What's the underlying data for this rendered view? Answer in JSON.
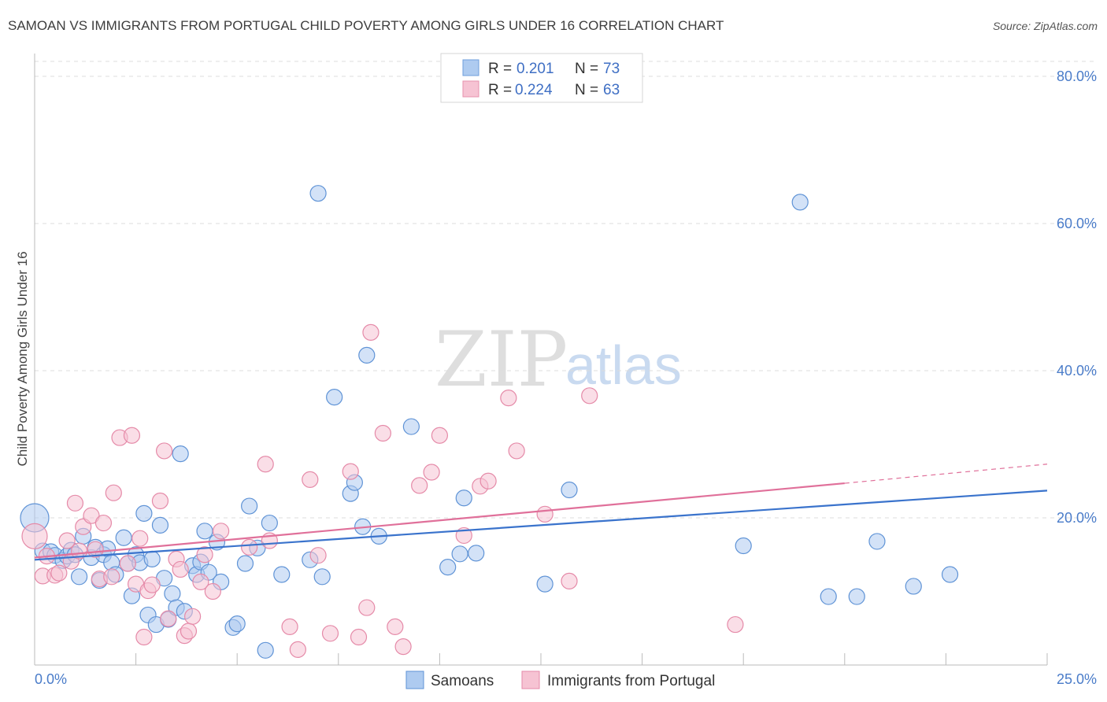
{
  "header": {
    "title": "SAMOAN VS IMMIGRANTS FROM PORTUGAL CHILD POVERTY AMONG GIRLS UNDER 16 CORRELATION CHART",
    "source": "Source: ZipAtlas.com"
  },
  "watermark": {
    "zip": "ZIP",
    "atlas": "atlas"
  },
  "legend": {
    "r_label": "R =",
    "n_label": "N =",
    "entries": [
      {
        "r": "0.201",
        "n": "73",
        "fill": "#aecbf0",
        "stroke": "#6f9fdc"
      },
      {
        "r": "0.224",
        "n": "63",
        "fill": "#f6c3d3",
        "stroke": "#e791ad"
      }
    ]
  },
  "bottom_legend": [
    "Samoans",
    "Immigrants from Portugal"
  ],
  "colors": {
    "blue_fill": "#aecbf0",
    "blue_stroke": "#5f93d6",
    "blue_line": "#3a73cc",
    "pink_fill": "#f6c3d3",
    "pink_stroke": "#e58aa8",
    "pink_line": "#e0709a",
    "tick_text": "#4a7cc9"
  },
  "chart_data": {
    "type": "scatter",
    "title": "SAMOAN VS IMMIGRANTS FROM PORTUGAL CHILD POVERTY AMONG GIRLS UNDER 16 CORRELATION CHART",
    "xlabel": "",
    "ylabel": "Child Poverty Among Girls Under 16",
    "xlim": [
      0,
      25
    ],
    "ylim": [
      0,
      80
    ],
    "x_tick_labels": [
      "0.0%",
      "25.0%"
    ],
    "y_ticks": [
      20,
      40,
      60,
      80
    ],
    "y_tick_labels": [
      "20.0%",
      "40.0%",
      "60.0%",
      "80.0%"
    ],
    "grid": true,
    "legend_position": "top-center",
    "series": [
      {
        "name": "Samoans",
        "r": 0.201,
        "n": 73,
        "trend": {
          "x": [
            0,
            25
          ],
          "y": [
            14.3,
            23.7
          ]
        },
        "points": [
          [
            0.0,
            20.0,
            18
          ],
          [
            0.2,
            15.5,
            10
          ],
          [
            0.4,
            15.4,
            10
          ],
          [
            0.5,
            14.9,
            10
          ],
          [
            0.7,
            14.2,
            10
          ],
          [
            0.8,
            14.8,
            10
          ],
          [
            0.9,
            15.6,
            10
          ],
          [
            1.0,
            15.0,
            10
          ],
          [
            1.1,
            12.0,
            10
          ],
          [
            1.2,
            17.5,
            10
          ],
          [
            1.4,
            14.6,
            10
          ],
          [
            1.5,
            16.0,
            10
          ],
          [
            1.6,
            11.5,
            10
          ],
          [
            1.7,
            15.0,
            10
          ],
          [
            1.8,
            15.8,
            10
          ],
          [
            1.9,
            13.9,
            10
          ],
          [
            2.0,
            12.3,
            10
          ],
          [
            2.2,
            17.3,
            10
          ],
          [
            2.3,
            13.8,
            10
          ],
          [
            2.4,
            9.4,
            10
          ],
          [
            2.5,
            15.0,
            10
          ],
          [
            2.6,
            13.9,
            10
          ],
          [
            2.7,
            20.6,
            10
          ],
          [
            2.8,
            6.8,
            10
          ],
          [
            2.9,
            14.4,
            10
          ],
          [
            3.0,
            5.5,
            10
          ],
          [
            3.1,
            19.0,
            10
          ],
          [
            3.2,
            11.8,
            10
          ],
          [
            3.3,
            6.2,
            10
          ],
          [
            3.4,
            9.7,
            10
          ],
          [
            3.5,
            7.8,
            10
          ],
          [
            3.6,
            28.7,
            10
          ],
          [
            3.7,
            7.3,
            10
          ],
          [
            3.9,
            13.5,
            10
          ],
          [
            4.0,
            12.3,
            10
          ],
          [
            4.1,
            14.0,
            10
          ],
          [
            4.2,
            18.2,
            10
          ],
          [
            4.3,
            12.6,
            10
          ],
          [
            4.5,
            16.7,
            10
          ],
          [
            4.6,
            11.3,
            10
          ],
          [
            4.9,
            5.1,
            10
          ],
          [
            5.0,
            5.6,
            10
          ],
          [
            5.2,
            13.8,
            10
          ],
          [
            5.3,
            21.6,
            10
          ],
          [
            5.5,
            15.9,
            10
          ],
          [
            5.7,
            2.0,
            10
          ],
          [
            5.8,
            19.3,
            10
          ],
          [
            6.1,
            12.3,
            10
          ],
          [
            6.8,
            14.3,
            10
          ],
          [
            7.0,
            64.1,
            10
          ],
          [
            7.1,
            12.0,
            10
          ],
          [
            7.4,
            36.4,
            10
          ],
          [
            7.8,
            23.3,
            10
          ],
          [
            7.9,
            24.8,
            10
          ],
          [
            8.1,
            18.8,
            10
          ],
          [
            8.2,
            42.1,
            10
          ],
          [
            8.5,
            17.5,
            10
          ],
          [
            9.3,
            32.4,
            10
          ],
          [
            10.2,
            13.3,
            10
          ],
          [
            10.5,
            15.1,
            10
          ],
          [
            10.6,
            22.7,
            10
          ],
          [
            10.9,
            15.2,
            10
          ],
          [
            12.6,
            11.0,
            10
          ],
          [
            13.2,
            23.8,
            10
          ],
          [
            17.5,
            16.2,
            10
          ],
          [
            18.9,
            62.9,
            10
          ],
          [
            19.6,
            9.3,
            10
          ],
          [
            20.3,
            9.3,
            10
          ],
          [
            20.8,
            16.8,
            10
          ],
          [
            21.7,
            10.7,
            10
          ],
          [
            22.6,
            12.3,
            10
          ]
        ]
      },
      {
        "name": "Immigrants from Portugal",
        "r": 0.224,
        "n": 63,
        "trend": {
          "x": [
            0,
            20
          ],
          "y": [
            14.6,
            24.7
          ]
        },
        "trend_dashed": {
          "x": [
            20,
            25
          ],
          "y": [
            24.7,
            27.3
          ]
        },
        "points": [
          [
            0.0,
            17.5,
            16
          ],
          [
            0.2,
            12.1,
            10
          ],
          [
            0.3,
            14.8,
            10
          ],
          [
            0.5,
            12.2,
            10
          ],
          [
            0.6,
            12.5,
            10
          ],
          [
            0.8,
            16.9,
            10
          ],
          [
            0.9,
            14.1,
            10
          ],
          [
            1.0,
            22.0,
            10
          ],
          [
            1.1,
            15.5,
            10
          ],
          [
            1.2,
            18.8,
            10
          ],
          [
            1.4,
            20.3,
            10
          ],
          [
            1.5,
            15.7,
            10
          ],
          [
            1.6,
            11.7,
            10
          ],
          [
            1.7,
            19.3,
            10
          ],
          [
            1.9,
            12.0,
            10
          ],
          [
            1.95,
            23.4,
            10
          ],
          [
            2.1,
            30.9,
            10
          ],
          [
            2.3,
            13.8,
            10
          ],
          [
            2.4,
            31.2,
            10
          ],
          [
            2.5,
            11.0,
            10
          ],
          [
            2.6,
            17.2,
            10
          ],
          [
            2.7,
            3.8,
            10
          ],
          [
            2.8,
            10.1,
            10
          ],
          [
            2.9,
            10.9,
            10
          ],
          [
            3.1,
            22.3,
            10
          ],
          [
            3.2,
            29.1,
            10
          ],
          [
            3.3,
            6.3,
            10
          ],
          [
            3.5,
            14.4,
            10
          ],
          [
            3.6,
            13.0,
            10
          ],
          [
            3.7,
            4.0,
            10
          ],
          [
            3.8,
            4.6,
            10
          ],
          [
            3.9,
            6.6,
            10
          ],
          [
            4.1,
            11.3,
            10
          ],
          [
            4.2,
            15.0,
            10
          ],
          [
            4.4,
            10.0,
            10
          ],
          [
            4.6,
            18.2,
            10
          ],
          [
            5.3,
            16.0,
            10
          ],
          [
            5.7,
            27.3,
            10
          ],
          [
            5.8,
            16.9,
            10
          ],
          [
            6.3,
            5.2,
            10
          ],
          [
            6.5,
            2.1,
            10
          ],
          [
            6.8,
            25.2,
            10
          ],
          [
            7.0,
            14.9,
            10
          ],
          [
            7.3,
            4.3,
            10
          ],
          [
            7.8,
            26.3,
            10
          ],
          [
            8.0,
            3.8,
            10
          ],
          [
            8.2,
            7.8,
            10
          ],
          [
            8.3,
            45.2,
            10
          ],
          [
            8.6,
            31.5,
            10
          ],
          [
            8.9,
            5.2,
            10
          ],
          [
            9.1,
            2.5,
            10
          ],
          [
            9.5,
            24.4,
            10
          ],
          [
            9.8,
            26.2,
            10
          ],
          [
            10.0,
            31.2,
            10
          ],
          [
            10.6,
            17.6,
            10
          ],
          [
            11.0,
            24.3,
            10
          ],
          [
            11.2,
            25.0,
            10
          ],
          [
            11.7,
            36.3,
            10
          ],
          [
            11.9,
            29.1,
            10
          ],
          [
            12.6,
            20.5,
            10
          ],
          [
            13.2,
            11.4,
            10
          ],
          [
            13.7,
            36.6,
            10
          ],
          [
            17.3,
            5.5,
            10
          ]
        ]
      }
    ]
  }
}
